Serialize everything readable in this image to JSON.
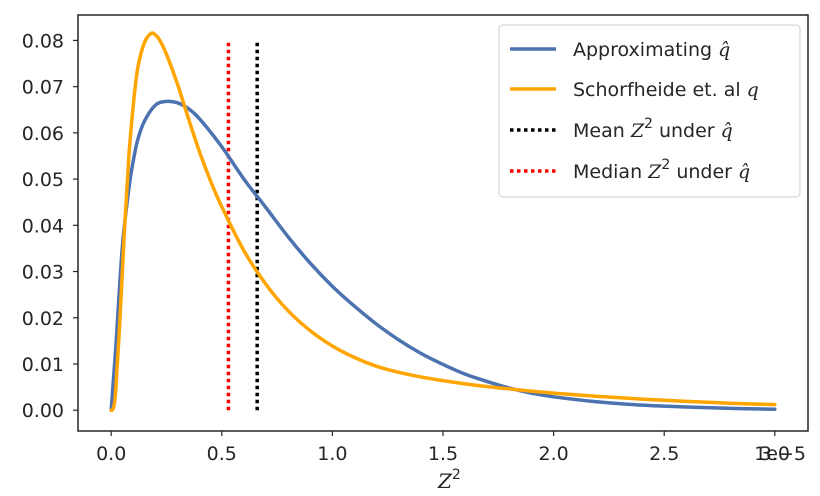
{
  "chart_data": {
    "type": "line",
    "xlabel": "Z",
    "xlabel_sup": "2",
    "x_offset_text": "1e−5",
    "xlim": [
      -0.15,
      3.15
    ],
    "ylim": [
      -0.0045,
      0.0855
    ],
    "xticks": [
      0.0,
      0.5,
      1.0,
      1.5,
      2.0,
      2.5,
      3.0
    ],
    "xtick_labels": [
      "0.0",
      "0.5",
      "1.0",
      "1.5",
      "2.0",
      "2.5",
      "3.0"
    ],
    "yticks": [
      0.0,
      0.01,
      0.02,
      0.03,
      0.04,
      0.05,
      0.06,
      0.07,
      0.08
    ],
    "ytick_labels": [
      "0.00",
      "0.01",
      "0.02",
      "0.03",
      "0.04",
      "0.05",
      "0.06",
      "0.07",
      "0.08"
    ],
    "grid": false,
    "legend_position": "top-right",
    "series": [
      {
        "legend_text": "Approximating q̂",
        "color": "#4c72b0",
        "style": "solid",
        "x": [
          0.0,
          0.02,
          0.05,
          0.08,
          0.1,
          0.12,
          0.15,
          0.2,
          0.25,
          0.3,
          0.35,
          0.4,
          0.5,
          0.6,
          0.7,
          0.8,
          0.9,
          1.0,
          1.1,
          1.2,
          1.3,
          1.4,
          1.5,
          1.6,
          1.7,
          1.8,
          1.9,
          2.0,
          2.2,
          2.4,
          2.6,
          2.8,
          3.0
        ],
        "y": [
          0.0,
          0.013,
          0.035,
          0.048,
          0.054,
          0.0585,
          0.0625,
          0.066,
          0.0668,
          0.0665,
          0.0652,
          0.063,
          0.057,
          0.05,
          0.0438,
          0.0375,
          0.0318,
          0.0268,
          0.0225,
          0.0186,
          0.0152,
          0.0123,
          0.0099,
          0.0078,
          0.0062,
          0.0048,
          0.0037,
          0.0029,
          0.0018,
          0.0011,
          0.0007,
          0.0004,
          0.0002
        ]
      },
      {
        "legend_text": "Schorfheide et. al q",
        "color": "#ffa500",
        "style": "solid",
        "x": [
          0.0,
          0.01,
          0.02,
          0.04,
          0.06,
          0.08,
          0.1,
          0.12,
          0.15,
          0.18,
          0.2,
          0.22,
          0.25,
          0.3,
          0.35,
          0.4,
          0.45,
          0.5,
          0.6,
          0.7,
          0.8,
          0.9,
          1.0,
          1.1,
          1.2,
          1.3,
          1.4,
          1.5,
          1.6,
          1.7,
          1.8,
          2.0,
          2.2,
          2.4,
          2.6,
          2.8,
          3.0
        ],
        "y": [
          0.0,
          0.0005,
          0.004,
          0.02,
          0.039,
          0.055,
          0.066,
          0.074,
          0.0795,
          0.0815,
          0.0812,
          0.08,
          0.077,
          0.0705,
          0.063,
          0.0558,
          0.0495,
          0.044,
          0.0345,
          0.0272,
          0.0215,
          0.0172,
          0.0139,
          0.0114,
          0.0095,
          0.0082,
          0.0072,
          0.0064,
          0.0057,
          0.0051,
          0.0046,
          0.0037,
          0.003,
          0.0024,
          0.0019,
          0.0015,
          0.0012
        ]
      }
    ],
    "vlines": [
      {
        "legend_text": "Mean Z² under q̂",
        "color": "#000000",
        "x": 0.66,
        "ymin": 0.0,
        "ymax": 0.08
      },
      {
        "legend_text": "Median Z² under q̂",
        "color": "#ff0000",
        "x": 0.53,
        "ymin": 0.0,
        "ymax": 0.08
      }
    ]
  }
}
